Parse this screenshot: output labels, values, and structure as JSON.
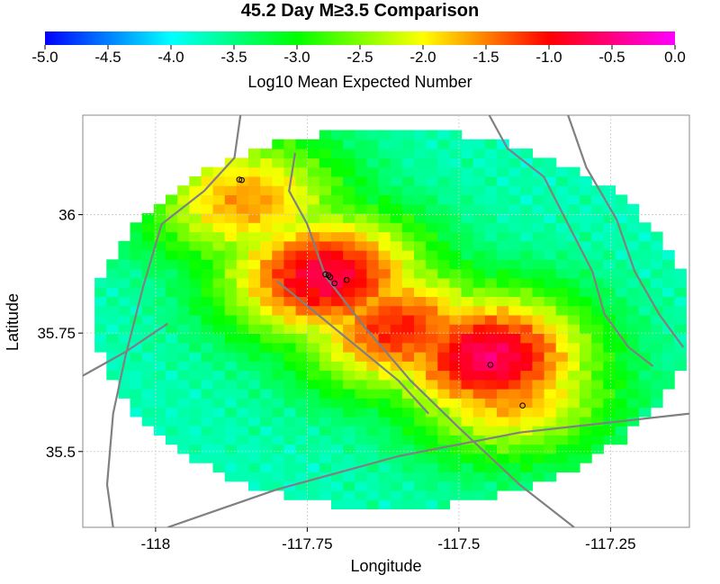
{
  "chart_data": {
    "type": "heatmap",
    "title": "45.2 Day M≥3.5 Comparison",
    "colorbar": {
      "label": "Log10 Mean Expected Number",
      "range": [
        -5.0,
        0.0
      ],
      "ticks": [
        "-5.0",
        "-4.5",
        "-4.0",
        "-3.5",
        "-3.0",
        "-2.5",
        "-2.0",
        "-1.5",
        "-1.0",
        "-0.5",
        "0.0"
      ],
      "colormap": [
        "#0000ff",
        "#00ffff",
        "#00ff00",
        "#ffff00",
        "#ff0000",
        "#ff00ff"
      ]
    },
    "xlabel": "Longitude",
    "ylabel": "Latitude",
    "xlim": [
      -118.12,
      -117.12
    ],
    "ylim": [
      35.34,
      36.21
    ],
    "xticks": [
      {
        "value": -118.0,
        "label": "-118"
      },
      {
        "value": -117.75,
        "label": "-117.75"
      },
      {
        "value": -117.5,
        "label": "-117.5"
      },
      {
        "value": -117.25,
        "label": "-117.25"
      }
    ],
    "yticks": [
      {
        "value": 36.0,
        "label": "36"
      },
      {
        "value": 35.75,
        "label": "35.75"
      },
      {
        "value": 35.5,
        "label": "35.5"
      }
    ],
    "grid": true,
    "region": {
      "center": [
        -117.61,
        35.78
      ],
      "radius_deg": [
        0.49,
        0.4
      ]
    },
    "hotspots": [
      {
        "lon": -117.45,
        "lat": 35.7,
        "value": -0.6
      },
      {
        "lon": -117.72,
        "lat": 35.87,
        "value": -0.7
      },
      {
        "lon": -117.6,
        "lat": 35.76,
        "value": -1.1
      },
      {
        "lon": -117.42,
        "lat": 35.63,
        "value": -1.5
      },
      {
        "lon": -117.85,
        "lat": 36.03,
        "value": -1.6
      }
    ],
    "events": [
      {
        "lon": -117.72,
        "lat": 35.874
      },
      {
        "lon": -117.715,
        "lat": 35.872
      },
      {
        "lon": -117.712,
        "lat": 35.868
      },
      {
        "lon": -117.705,
        "lat": 35.855
      },
      {
        "lon": -117.685,
        "lat": 35.862
      },
      {
        "lon": -117.448,
        "lat": 35.683
      },
      {
        "lon": -117.395,
        "lat": 35.597
      },
      {
        "lon": -117.858,
        "lat": 36.073
      },
      {
        "lon": -117.862,
        "lat": 36.074
      }
    ],
    "faults": [
      [
        [
          -117.86,
          36.21
        ],
        [
          -117.87,
          36.12
        ],
        [
          -117.92,
          36.05
        ],
        [
          -117.99,
          35.98
        ],
        [
          -118.02,
          35.85
        ],
        [
          -118.05,
          35.7
        ],
        [
          -118.07,
          35.58
        ],
        [
          -118.08,
          35.43
        ],
        [
          -118.07,
          35.34
        ]
      ],
      [
        [
          -117.77,
          36.13
        ],
        [
          -117.78,
          36.05
        ],
        [
          -117.75,
          35.98
        ],
        [
          -117.72,
          35.87
        ],
        [
          -117.66,
          35.77
        ],
        [
          -117.58,
          35.65
        ],
        [
          -117.5,
          35.55
        ],
        [
          -117.4,
          35.43
        ],
        [
          -117.31,
          35.34
        ]
      ],
      [
        [
          -117.8,
          35.86
        ],
        [
          -117.6,
          35.65
        ],
        [
          -117.55,
          35.58
        ]
      ],
      [
        [
          -117.45,
          36.21
        ],
        [
          -117.42,
          36.14
        ],
        [
          -117.36,
          36.08
        ],
        [
          -117.32,
          35.98
        ],
        [
          -117.28,
          35.88
        ],
        [
          -117.26,
          35.79
        ],
        [
          -117.22,
          35.72
        ],
        [
          -117.18,
          35.68
        ]
      ],
      [
        [
          -117.32,
          36.21
        ],
        [
          -117.29,
          36.1
        ],
        [
          -117.24,
          35.99
        ],
        [
          -117.21,
          35.88
        ],
        [
          -117.17,
          35.79
        ],
        [
          -117.13,
          35.72
        ]
      ],
      [
        [
          -117.98,
          35.34
        ],
        [
          -117.8,
          35.42
        ],
        [
          -117.6,
          35.49
        ],
        [
          -117.4,
          35.54
        ],
        [
          -117.12,
          35.58
        ]
      ],
      [
        [
          -118.12,
          35.66
        ],
        [
          -118.05,
          35.71
        ],
        [
          -117.98,
          35.77
        ]
      ]
    ]
  }
}
